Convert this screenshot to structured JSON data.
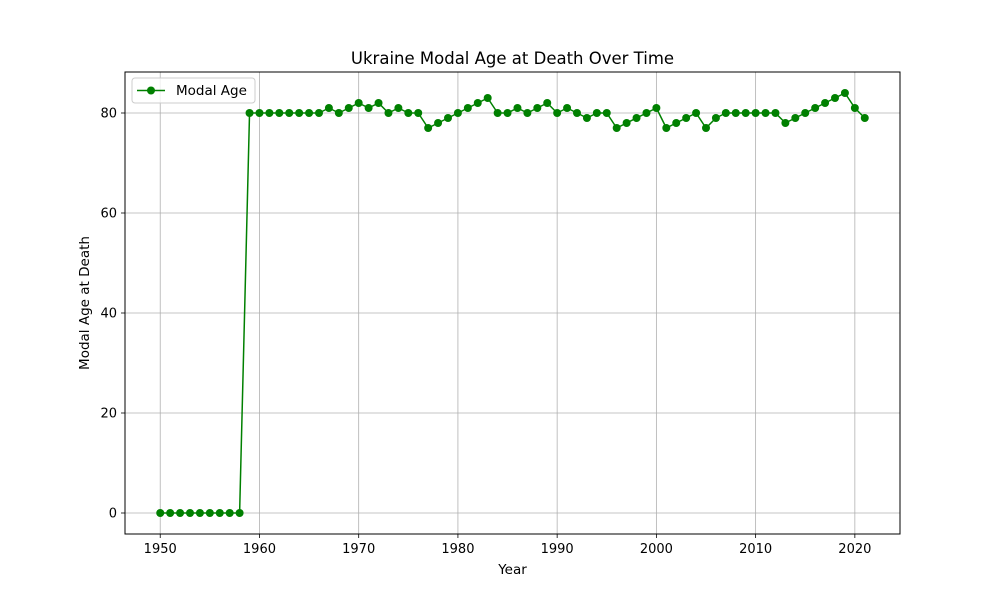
{
  "chart_data": {
    "type": "line",
    "title": "Ukraine Modal Age at Death Over Time",
    "xlabel": "Year",
    "ylabel": "Modal Age at Death",
    "xlim": [
      1946.45,
      2024.55
    ],
    "ylim": [
      -4.2,
      88.2
    ],
    "xticks": [
      1950,
      1960,
      1970,
      1980,
      1990,
      2000,
      2010,
      2020
    ],
    "yticks": [
      0,
      20,
      40,
      60,
      80
    ],
    "grid": true,
    "legend_position": "top-left",
    "color": "#008000",
    "series": [
      {
        "name": "Modal Age",
        "x": [
          1950,
          1951,
          1952,
          1953,
          1954,
          1955,
          1956,
          1957,
          1958,
          1959,
          1960,
          1961,
          1962,
          1963,
          1964,
          1965,
          1966,
          1967,
          1968,
          1969,
          1970,
          1971,
          1972,
          1973,
          1974,
          1975,
          1976,
          1977,
          1978,
          1979,
          1980,
          1981,
          1982,
          1983,
          1984,
          1985,
          1986,
          1987,
          1988,
          1989,
          1990,
          1991,
          1992,
          1993,
          1994,
          1995,
          1996,
          1997,
          1998,
          1999,
          2000,
          2001,
          2002,
          2003,
          2004,
          2005,
          2006,
          2007,
          2008,
          2009,
          2010,
          2011,
          2012,
          2013,
          2014,
          2015,
          2016,
          2017,
          2018,
          2019,
          2020,
          2021
        ],
        "y": [
          0,
          0,
          0,
          0,
          0,
          0,
          0,
          0,
          0,
          80,
          80,
          80,
          80,
          80,
          80,
          80,
          80,
          81,
          80,
          81,
          82,
          81,
          82,
          80,
          81,
          80,
          80,
          77,
          78,
          79,
          80,
          81,
          82,
          83,
          80,
          80,
          81,
          80,
          81,
          82,
          80,
          81,
          80,
          79,
          80,
          80,
          77,
          78,
          79,
          80,
          81,
          77,
          78,
          79,
          80,
          77,
          79,
          80,
          80,
          80,
          80,
          80,
          80,
          78,
          79,
          80,
          81,
          82,
          83,
          84,
          81,
          79
        ]
      }
    ]
  }
}
